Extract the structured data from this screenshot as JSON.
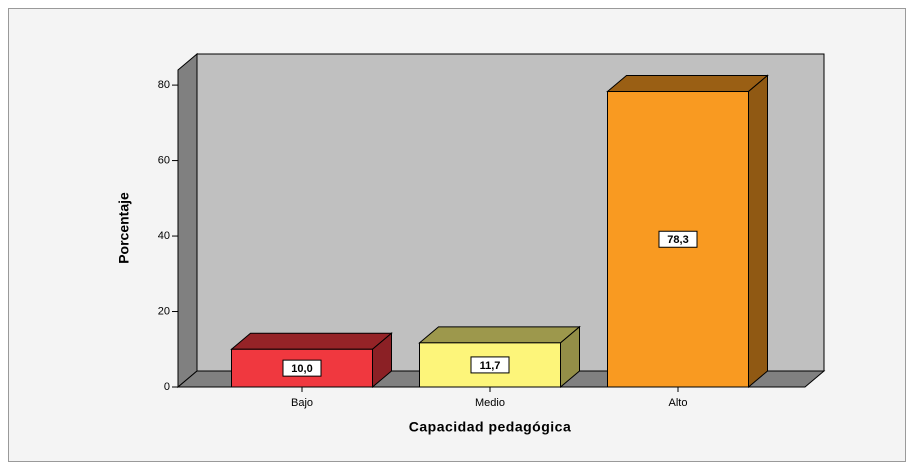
{
  "chart_data": {
    "type": "bar3d",
    "xlabel": "Capacidad pedagógica",
    "ylabel": "Porcentaje",
    "categories": [
      "Bajo",
      "Medio",
      "Alto"
    ],
    "values": [
      10.0,
      11.7,
      78.3
    ],
    "value_labels": [
      "10,0",
      "11,7",
      "78,3"
    ],
    "colors": [
      "#f0383f",
      "#fdf57a",
      "#f99a21"
    ],
    "ylim": [
      0,
      84
    ],
    "yticks": [
      0,
      20,
      40,
      60,
      80
    ]
  }
}
